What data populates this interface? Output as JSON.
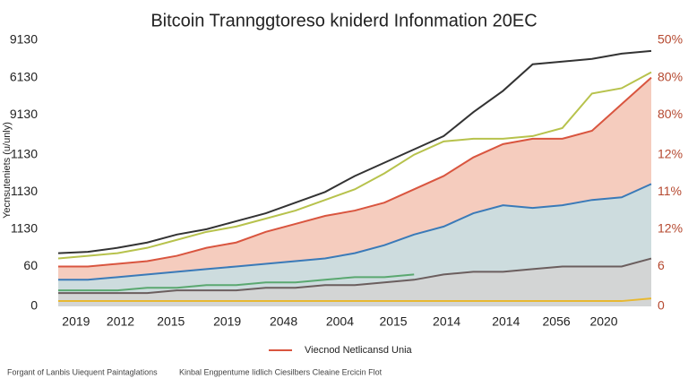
{
  "chart_data": {
    "type": "line",
    "title": "Bitcoin Trannggtoreso kniderd Infonmation 20EC",
    "y_label": "Yecnsuteniets (u/unly)",
    "footnotes": [
      "Forgant of Lanbis Uiequent Paintaglations",
      "Kinbal Engpentume Iidlich Ciesilbers Cleaine Ercicin Flot"
    ],
    "x": [
      0,
      1,
      2,
      3,
      4,
      5,
      6,
      7,
      8,
      9,
      10,
      11,
      12,
      13,
      14,
      15,
      16,
      17,
      18,
      19,
      20
    ],
    "xlim": [
      0,
      20
    ],
    "xticks": [
      {
        "value": 0.6,
        "label": "2019"
      },
      {
        "value": 2.1,
        "label": "2012"
      },
      {
        "value": 3.8,
        "label": "2015"
      },
      {
        "value": 5.7,
        "label": "2019"
      },
      {
        "value": 7.6,
        "label": "2048"
      },
      {
        "value": 9.5,
        "label": "2004"
      },
      {
        "value": 11.3,
        "label": "2015"
      },
      {
        "value": 13.1,
        "label": "2014"
      },
      {
        "value": 15.1,
        "label": "2014"
      },
      {
        "value": 16.8,
        "label": "2056"
      },
      {
        "value": 18.4,
        "label": "2020"
      }
    ],
    "ylim": [
      0,
      100
    ],
    "yticks": [
      {
        "value": 100,
        "label": "9130"
      },
      {
        "value": 86,
        "label": "6130"
      },
      {
        "value": 72,
        "label": "9130"
      },
      {
        "value": 57,
        "label": "1130"
      },
      {
        "value": 43,
        "label": "1130"
      },
      {
        "value": 29,
        "label": "1130"
      },
      {
        "value": 15,
        "label": "60"
      },
      0
    ],
    "y2lim": [
      0,
      100
    ],
    "y2ticks": [
      {
        "value": 100,
        "label": "50%"
      },
      {
        "value": 86,
        "label": "80%"
      },
      {
        "value": 72,
        "label": "80%"
      },
      {
        "value": 57,
        "label": "12%"
      },
      {
        "value": 43,
        "label": "11%"
      },
      {
        "value": 29,
        "label": "12%"
      },
      {
        "value": 15,
        "label": "6"
      },
      0
    ],
    "series": [
      {
        "name": "Viecnod Netlicansd Unia",
        "color": "#d9553f",
        "area_color": "#f3c3b3",
        "values": [
          15,
          15,
          16,
          17,
          19,
          22,
          24,
          28,
          31,
          34,
          36,
          39,
          44,
          49,
          56,
          61,
          63,
          63,
          66,
          76,
          86
        ]
      },
      {
        "color": "#b7c24c",
        "values": [
          18,
          19,
          20,
          22,
          25,
          28,
          30,
          33,
          36,
          40,
          44,
          50,
          57,
          62,
          63,
          63,
          64,
          67,
          80,
          82,
          88
        ]
      },
      {
        "color": "#333333",
        "values": [
          20,
          20.5,
          22,
          24,
          27,
          29,
          32,
          35,
          39,
          43,
          49,
          54,
          59,
          64,
          73,
          81,
          91,
          92,
          93,
          95,
          96
        ]
      },
      {
        "color": "#3a7ab8",
        "area_color": "#c6dee4",
        "values": [
          10,
          10,
          11,
          12,
          13,
          14,
          15,
          16,
          17,
          18,
          20,
          23,
          27,
          30,
          35,
          38,
          37,
          38,
          40,
          41,
          46
        ]
      },
      {
        "color": "#5aa870",
        "values": [
          6,
          6,
          6,
          7,
          7,
          8,
          8,
          9,
          9,
          10,
          11,
          11,
          12,
          null,
          null,
          null,
          null,
          null,
          null,
          null,
          null
        ]
      },
      {
        "color": "#6b5e5e",
        "area_color": "#d3d3d3",
        "values": [
          5,
          5,
          5,
          5,
          6,
          6,
          6,
          7,
          7,
          8,
          8,
          9,
          10,
          12,
          13,
          13,
          14,
          15,
          15,
          15,
          18
        ]
      },
      {
        "color": "#e8b830",
        "values": [
          2,
          2,
          2,
          2,
          2,
          2,
          2,
          2,
          2,
          2,
          2,
          2,
          2,
          2,
          2,
          2,
          2,
          2,
          2,
          2,
          3
        ]
      }
    ]
  }
}
